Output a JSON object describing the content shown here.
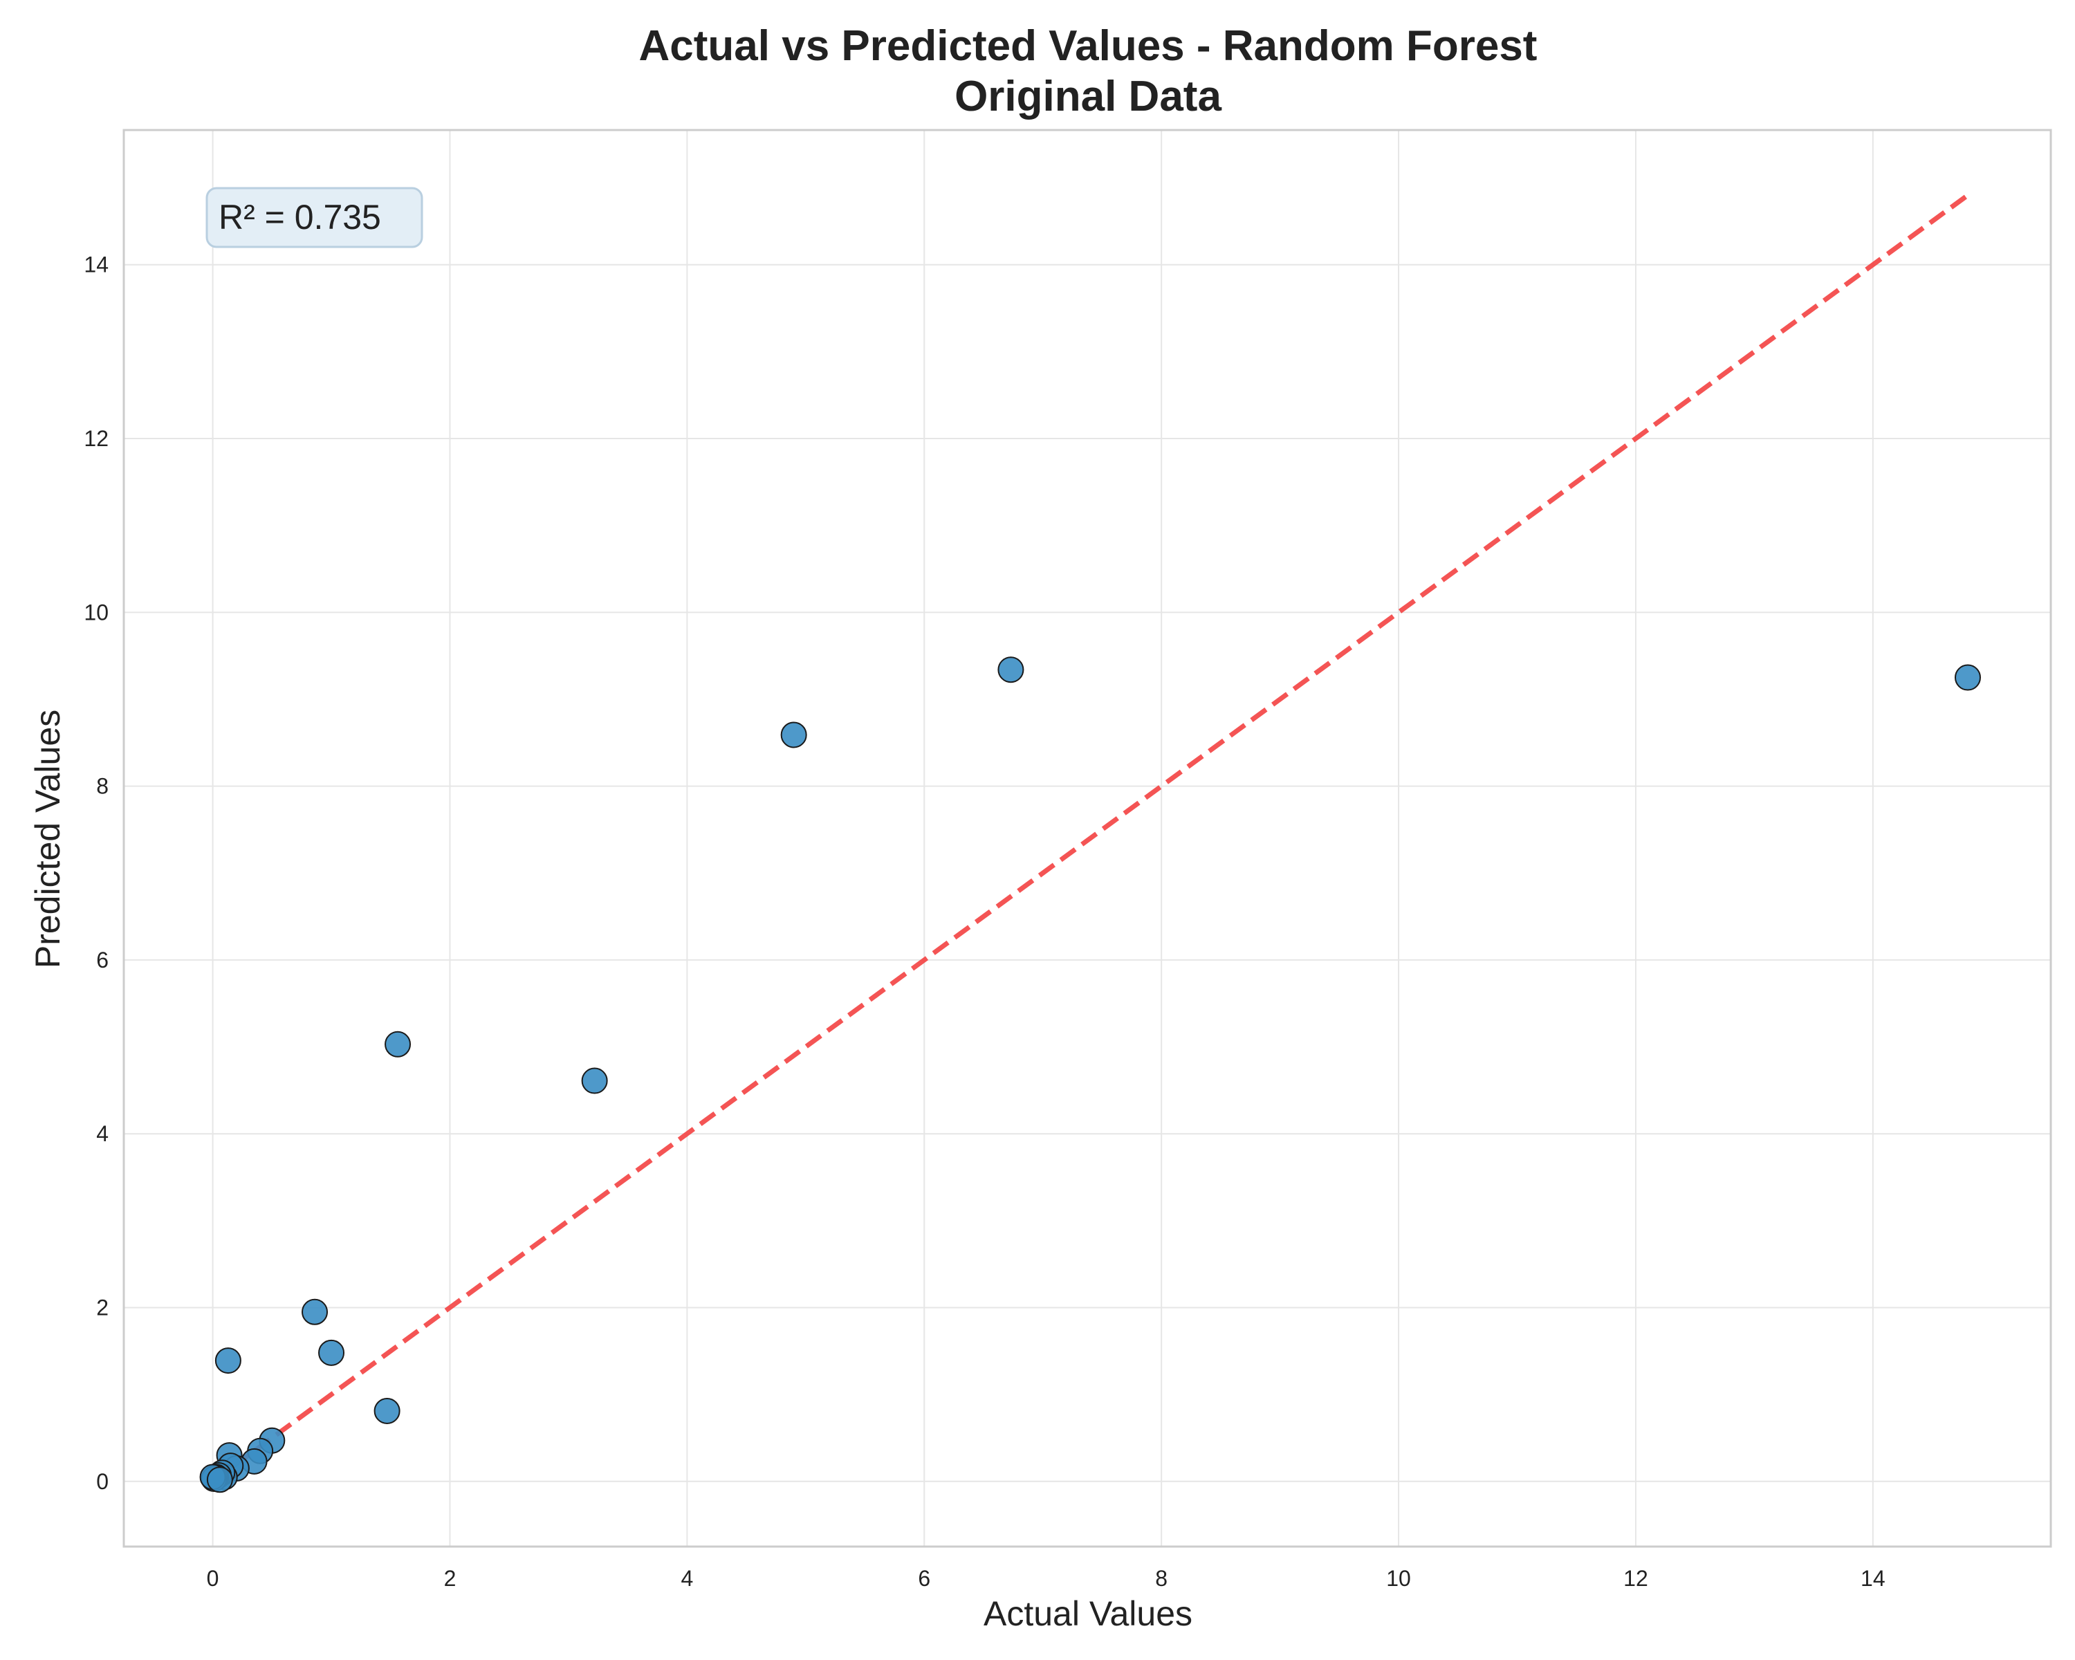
{
  "chart_data": {
    "type": "scatter",
    "title_line1": "Actual vs Predicted Values - Random Forest",
    "title_line2": "Original Data",
    "xlabel": "Actual Values",
    "ylabel": "Predicted Values",
    "xlim": [
      -0.75,
      15.5
    ],
    "ylim": [
      -0.75,
      15.55
    ],
    "xticks": [
      0,
      2,
      4,
      6,
      8,
      10,
      12,
      14
    ],
    "yticks": [
      0,
      2,
      4,
      6,
      8,
      10,
      12,
      14
    ],
    "grid": true,
    "annotation": "R² = 0.735",
    "reference_line": {
      "style": "dashed",
      "color": "#f44b4b",
      "from": [
        0,
        0
      ],
      "to": [
        14.8,
        14.8
      ]
    },
    "marker_color": "#3b8ec4",
    "marker_edge_color": "#1a1a1a",
    "points": [
      {
        "x": 14.8,
        "y": 9.25
      },
      {
        "x": 6.73,
        "y": 9.34
      },
      {
        "x": 4.9,
        "y": 8.59
      },
      {
        "x": 3.22,
        "y": 4.61
      },
      {
        "x": 1.56,
        "y": 5.03
      },
      {
        "x": 1.47,
        "y": 0.81
      },
      {
        "x": 0.86,
        "y": 1.95
      },
      {
        "x": 1.0,
        "y": 1.48
      },
      {
        "x": 0.13,
        "y": 1.39
      },
      {
        "x": 0.5,
        "y": 0.47
      },
      {
        "x": 0.4,
        "y": 0.35
      },
      {
        "x": 0.35,
        "y": 0.23
      },
      {
        "x": 0.14,
        "y": 0.3
      },
      {
        "x": 0.2,
        "y": 0.15
      },
      {
        "x": 0.15,
        "y": 0.18
      },
      {
        "x": 0.1,
        "y": 0.05
      },
      {
        "x": 0.08,
        "y": 0.1
      },
      {
        "x": 0.05,
        "y": 0.07
      },
      {
        "x": 0.03,
        "y": 0.05
      },
      {
        "x": 0.02,
        "y": 0.04
      },
      {
        "x": 0.01,
        "y": 0.03
      },
      {
        "x": 0.0,
        "y": 0.05
      },
      {
        "x": 0.06,
        "y": 0.02
      }
    ]
  }
}
